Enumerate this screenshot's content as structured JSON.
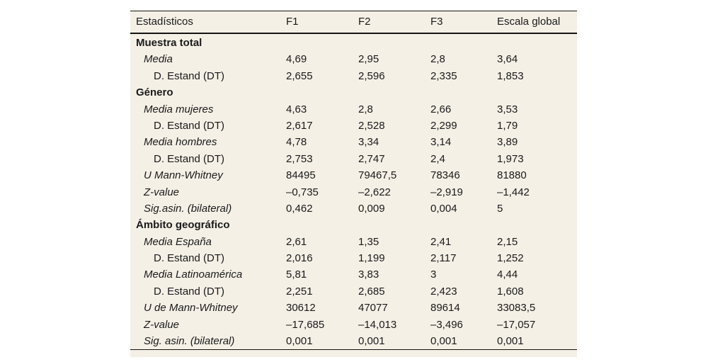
{
  "chart_data": {
    "type": "table",
    "columns": [
      "Estadísticos",
      "F1",
      "F2",
      "F3",
      "Escala global"
    ],
    "sections": [
      {
        "header": "Muestra total",
        "rows": [
          {
            "label": "Media",
            "style": "italic",
            "indent": 1,
            "values": [
              "4,69",
              "2,95",
              "2,8",
              "3,64"
            ]
          },
          {
            "label": "D. Estand (DT)",
            "style": "normal",
            "indent": 2,
            "values": [
              "2,655",
              "2,596",
              "2,335",
              "1,853"
            ]
          }
        ]
      },
      {
        "header": "Género",
        "rows": [
          {
            "label": "Media mujeres",
            "style": "italic",
            "indent": 1,
            "values": [
              "4,63",
              "2,8",
              "2,66",
              "3,53"
            ]
          },
          {
            "label": "D. Estand (DT)",
            "style": "normal",
            "indent": 2,
            "values": [
              "2,617",
              "2,528",
              "2,299",
              "1,79"
            ]
          },
          {
            "label": "Media hombres",
            "style": "italic",
            "indent": 1,
            "values": [
              "4,78",
              "3,34",
              "3,14",
              "3,89"
            ]
          },
          {
            "label": "D. Estand (DT)",
            "style": "normal",
            "indent": 2,
            "values": [
              "2,753",
              "2,747",
              "2,4",
              "1,973"
            ]
          },
          {
            "label": "U Mann-Whitney",
            "style": "italic",
            "indent": 1,
            "values": [
              "84495",
              "79467,5",
              "78346",
              "81880"
            ]
          },
          {
            "label": "Z-value",
            "style": "italic",
            "indent": 1,
            "values": [
              "–0,735",
              "–2,622",
              "–2,919",
              "–1,442"
            ]
          },
          {
            "label": "Sig.asin. (bilateral)",
            "style": "italic",
            "indent": 1,
            "values": [
              "0,462",
              "0,009",
              "0,004",
              "5"
            ]
          }
        ]
      },
      {
        "header": "Ámbito geográfico",
        "rows": [
          {
            "label": "Media España",
            "style": "italic",
            "indent": 1,
            "values": [
              "2,61",
              "1,35",
              "2,41",
              "2,15"
            ]
          },
          {
            "label": "D. Estand (DT)",
            "style": "normal",
            "indent": 2,
            "values": [
              "2,016",
              "1,199",
              "2,117",
              "1,252"
            ]
          },
          {
            "label": "Media Latinoamérica",
            "style": "italic",
            "indent": 1,
            "values": [
              "5,81",
              "3,83",
              "3",
              "4,44"
            ]
          },
          {
            "label": "D. Estand (DT)",
            "style": "normal",
            "indent": 2,
            "values": [
              "2,251",
              "2,685",
              "2,423",
              "1,608"
            ]
          },
          {
            "label": "U de Mann-Whitney",
            "style": "italic",
            "indent": 1,
            "values": [
              "30612",
              "47077",
              "89614",
              "33083,5"
            ]
          },
          {
            "label": "Z-value",
            "style": "italic",
            "indent": 1,
            "values": [
              "–17,685",
              "–14,013",
              "–3,496",
              "–17,057"
            ]
          },
          {
            "label": "Sig. asin. (bilateral)",
            "style": "italic",
            "indent": 1,
            "values": [
              "0,001",
              "0,001",
              "0,001",
              "0,001"
            ]
          }
        ]
      }
    ]
  },
  "colors": {
    "page_background": "#ffffff",
    "panel_background": "#f4f0e6",
    "rule": "#141414",
    "text": "#1a1a1a"
  }
}
